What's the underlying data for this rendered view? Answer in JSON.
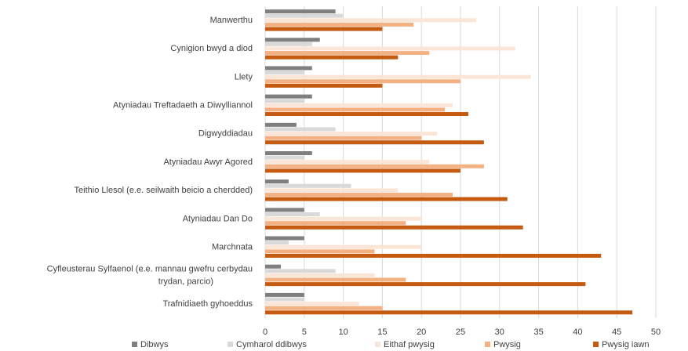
{
  "chart_data": {
    "type": "bar",
    "orientation": "horizontal",
    "categories": [
      "Manwerthu",
      "Cynigion bwyd a diod",
      "Llety",
      "Atyniadau Treftadaeth a Diwylliannol",
      "Digwyddiadau",
      "Atyniadau Awyr Agored",
      "Teithio Llesol (e.e. seilwaith beicio a cherdded)",
      "Atyniadau Dan Do",
      "Marchnata",
      "Cyfleusterau Sylfaenol (e.e. mannau gwefru cerbydau trydan, parcio)",
      "Trafnidiaeth gyhoeddus"
    ],
    "series": [
      {
        "name": "Dibwys",
        "color": "#7f7f7f",
        "values": [
          9,
          7,
          6,
          6,
          4,
          6,
          3,
          5,
          5,
          2,
          5
        ]
      },
      {
        "name": "Cymharol ddibwys",
        "color": "#d9d9d9",
        "values": [
          10,
          6,
          5,
          5,
          9,
          5,
          11,
          7,
          3,
          9,
          5
        ]
      },
      {
        "name": "Eithaf pwysig",
        "color": "#fbe5d6",
        "values": [
          27,
          32,
          34,
          24,
          22,
          21,
          17,
          20,
          20,
          14,
          12
        ]
      },
      {
        "name": "Pwysig",
        "color": "#f4b183",
        "values": [
          19,
          21,
          25,
          23,
          20,
          28,
          24,
          18,
          14,
          18,
          15
        ]
      },
      {
        "name": "Pwysig iawn",
        "color": "#c55a11",
        "values": [
          15,
          17,
          15,
          26,
          28,
          25,
          31,
          33,
          43,
          41,
          47
        ]
      }
    ],
    "xlim": [
      0,
      50
    ],
    "xticks": [
      0,
      5,
      10,
      15,
      20,
      25,
      30,
      35,
      40,
      45,
      50
    ],
    "grid": true,
    "legend": "bottom"
  }
}
